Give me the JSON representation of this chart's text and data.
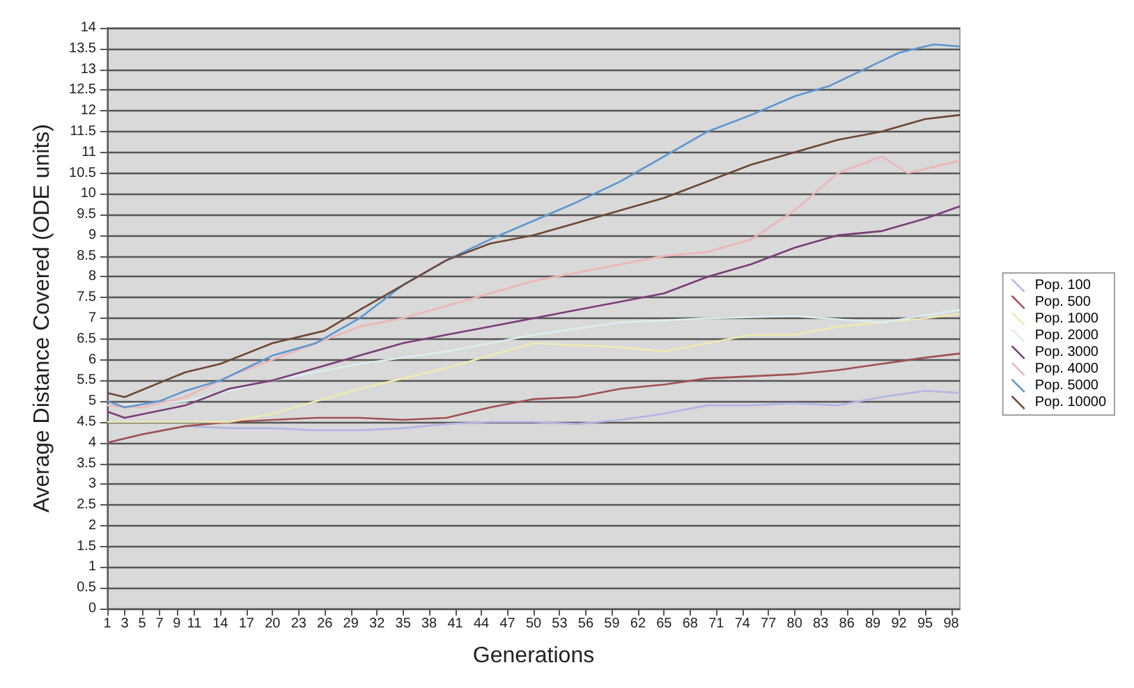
{
  "chart_data": {
    "type": "line",
    "xlabel": "Generations",
    "ylabel": "Average Distance Covered (ODE units)",
    "xlim": [
      1,
      99
    ],
    "xticks": [
      1,
      3,
      5,
      7,
      9,
      11,
      14,
      17,
      20,
      23,
      26,
      29,
      32,
      35,
      38,
      41,
      44,
      47,
      50,
      53,
      56,
      59,
      62,
      65,
      68,
      71,
      74,
      77,
      80,
      83,
      86,
      89,
      92,
      95,
      98
    ],
    "ylim": [
      0,
      14
    ],
    "yticks": [
      0,
      0.5,
      1,
      1.5,
      2,
      2.5,
      3,
      3.5,
      4,
      4.5,
      5,
      5.5,
      6,
      6.5,
      7,
      7.5,
      8,
      8.5,
      9,
      9.5,
      10,
      10.5,
      11,
      11.5,
      12,
      12.5,
      13,
      13.5,
      14
    ],
    "grid": "y",
    "legend": "right",
    "marker": "none",
    "line_style": "solid",
    "series": [
      {
        "name": "Pop. 100",
        "color": "#b4b4e6",
        "x": [
          1,
          5,
          10,
          15,
          20,
          25,
          30,
          35,
          40,
          45,
          50,
          55,
          60,
          65,
          70,
          75,
          80,
          85,
          90,
          95,
          99
        ],
        "values": [
          4.0,
          4.2,
          4.4,
          4.35,
          4.35,
          4.3,
          4.3,
          4.35,
          4.45,
          4.5,
          4.5,
          4.45,
          4.55,
          4.7,
          4.9,
          4.9,
          4.95,
          4.9,
          5.1,
          5.25,
          5.2
        ]
      },
      {
        "name": "Pop. 500",
        "color": "#a05050",
        "x": [
          1,
          5,
          10,
          15,
          20,
          25,
          30,
          35,
          40,
          45,
          50,
          55,
          60,
          65,
          70,
          75,
          80,
          85,
          90,
          95,
          99
        ],
        "values": [
          4.0,
          4.2,
          4.4,
          4.5,
          4.55,
          4.6,
          4.6,
          4.55,
          4.6,
          4.85,
          5.05,
          5.1,
          5.3,
          5.4,
          5.55,
          5.6,
          5.65,
          5.75,
          5.9,
          6.05,
          6.15
        ]
      },
      {
        "name": "Pop. 1000",
        "color": "#f0eab0",
        "x": [
          1,
          10,
          15,
          20,
          25,
          30,
          35,
          40,
          45,
          50,
          55,
          60,
          65,
          70,
          75,
          80,
          85,
          90,
          95,
          99
        ],
        "values": [
          4.5,
          4.5,
          4.5,
          4.7,
          5.0,
          5.3,
          5.55,
          5.8,
          6.1,
          6.4,
          6.35,
          6.3,
          6.2,
          6.4,
          6.6,
          6.6,
          6.8,
          6.9,
          7.0,
          7.1
        ]
      },
      {
        "name": "Pop. 2000",
        "color": "#dceef0",
        "x": [
          1,
          10,
          20,
          30,
          40,
          50,
          60,
          70,
          80,
          90,
          99
        ],
        "values": [
          4.9,
          5.0,
          5.5,
          5.9,
          6.2,
          6.6,
          6.9,
          7.0,
          7.05,
          6.9,
          7.2
        ]
      },
      {
        "name": "Pop. 3000",
        "color": "#7a3c78",
        "x": [
          1,
          3,
          10,
          15,
          20,
          25,
          30,
          35,
          40,
          45,
          50,
          55,
          60,
          65,
          70,
          75,
          80,
          85,
          90,
          95,
          99
        ],
        "values": [
          4.75,
          4.6,
          4.9,
          5.3,
          5.5,
          5.8,
          6.1,
          6.4,
          6.6,
          6.8,
          7.0,
          7.2,
          7.4,
          7.6,
          8.0,
          8.3,
          8.7,
          9.0,
          9.1,
          9.4,
          9.7
        ]
      },
      {
        "name": "Pop. 4000",
        "color": "#f0b4b4",
        "x": [
          1,
          5,
          10,
          15,
          20,
          25,
          30,
          35,
          40,
          45,
          50,
          55,
          60,
          65,
          70,
          75,
          80,
          85,
          90,
          93,
          99
        ],
        "values": [
          4.9,
          4.85,
          5.1,
          5.6,
          6.0,
          6.4,
          6.8,
          7.0,
          7.3,
          7.6,
          7.9,
          8.1,
          8.3,
          8.5,
          8.6,
          8.9,
          9.6,
          10.5,
          10.9,
          10.5,
          10.8
        ]
      },
      {
        "name": "Pop. 5000",
        "color": "#5a96d2",
        "x": [
          1,
          3,
          7,
          10,
          14,
          17,
          20,
          25,
          30,
          35,
          40,
          45,
          50,
          55,
          60,
          65,
          70,
          75,
          80,
          84,
          88,
          92,
          96,
          99
        ],
        "values": [
          5.0,
          4.85,
          5.0,
          5.25,
          5.5,
          5.8,
          6.1,
          6.4,
          7.0,
          7.8,
          8.4,
          8.9,
          9.35,
          9.8,
          10.3,
          10.9,
          11.5,
          11.9,
          12.35,
          12.6,
          13.0,
          13.4,
          13.6,
          13.55
        ]
      },
      {
        "name": "Pop. 10000",
        "color": "#6e4632",
        "x": [
          1,
          3,
          10,
          14,
          20,
          26,
          30,
          35,
          40,
          45,
          50,
          55,
          60,
          65,
          70,
          75,
          80,
          85,
          90,
          95,
          99
        ],
        "values": [
          5.2,
          5.1,
          5.7,
          5.9,
          6.4,
          6.7,
          7.2,
          7.8,
          8.4,
          8.8,
          9.0,
          9.3,
          9.6,
          9.9,
          10.3,
          10.7,
          11.0,
          11.3,
          11.5,
          11.8,
          11.9
        ]
      }
    ]
  }
}
